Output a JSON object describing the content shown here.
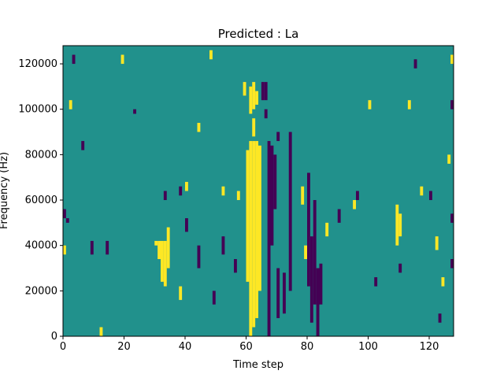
{
  "chart_data": {
    "type": "heatmap",
    "title": "Predicted : La",
    "xlabel": "Time step",
    "ylabel": "Frequency (Hz)",
    "xlim": [
      0,
      128
    ],
    "ylim": [
      0,
      128000
    ],
    "x_ticks": [
      0,
      20,
      40,
      60,
      80,
      100,
      120
    ],
    "y_ticks": [
      0,
      20000,
      40000,
      60000,
      80000,
      100000,
      120000
    ],
    "n_time_steps": 128,
    "n_freq_bins": 64,
    "bin_height_hz": 2000,
    "value_levels": [
      -1,
      0,
      1
    ],
    "colormap": "viridis",
    "colors": {
      "low": "#440154",
      "mid": "#21918c",
      "high": "#fde725"
    },
    "grid": false,
    "legend": "none",
    "cells": [
      {
        "t": 61,
        "f_start": 0,
        "f_end": 86000,
        "value": 1
      },
      {
        "t": 62,
        "f_start": 4000,
        "f_end": 86000,
        "value": 1
      },
      {
        "t": 63,
        "f_start": 8000,
        "f_end": 86000,
        "value": 1
      },
      {
        "t": 64,
        "f_start": 20000,
        "f_end": 84000,
        "value": 1
      },
      {
        "t": 60,
        "f_start": 24000,
        "f_end": 82000,
        "value": 1
      },
      {
        "t": 61,
        "f_start": 98000,
        "f_end": 110000,
        "value": 1
      },
      {
        "t": 62,
        "f_start": 100000,
        "f_end": 112000,
        "value": 1
      },
      {
        "t": 63,
        "f_start": 102000,
        "f_end": 108000,
        "value": 1
      },
      {
        "t": 59,
        "f_start": 106000,
        "f_end": 112000,
        "value": 1
      },
      {
        "t": 62,
        "f_start": 88000,
        "f_end": 96000,
        "value": 1
      },
      {
        "t": 32,
        "f_start": 24000,
        "f_end": 42000,
        "value": 1
      },
      {
        "t": 33,
        "f_start": 22000,
        "f_end": 42000,
        "value": 1
      },
      {
        "t": 34,
        "f_start": 30000,
        "f_end": 48000,
        "value": 1
      },
      {
        "t": 31,
        "f_start": 34000,
        "f_end": 42000,
        "value": 1
      },
      {
        "t": 30,
        "f_start": 40000,
        "f_end": 42000,
        "value": 1
      },
      {
        "t": 67,
        "f_start": 0,
        "f_end": 86000,
        "value": -1
      },
      {
        "t": 68,
        "f_start": 40000,
        "f_end": 84000,
        "value": -1
      },
      {
        "t": 69,
        "f_start": 56000,
        "f_end": 80000,
        "value": -1
      },
      {
        "t": 70,
        "f_start": 8000,
        "f_end": 30000,
        "value": -1
      },
      {
        "t": 72,
        "f_start": 10000,
        "f_end": 28000,
        "value": -1
      },
      {
        "t": 74,
        "f_start": 20000,
        "f_end": 90000,
        "value": -1
      },
      {
        "t": 80,
        "f_start": 22000,
        "f_end": 72000,
        "value": -1
      },
      {
        "t": 81,
        "f_start": 6000,
        "f_end": 44000,
        "value": -1
      },
      {
        "t": 82,
        "f_start": 14000,
        "f_end": 60000,
        "value": -1
      },
      {
        "t": 83,
        "f_start": 0,
        "f_end": 30000,
        "value": -1
      },
      {
        "t": 84,
        "f_start": 14000,
        "f_end": 32000,
        "value": -1
      },
      {
        "t": 65,
        "f_start": 104000,
        "f_end": 112000,
        "value": -1
      },
      {
        "t": 66,
        "f_start": 104000,
        "f_end": 112000,
        "value": -1
      },
      {
        "t": 66,
        "f_start": 96000,
        "f_end": 100000,
        "value": -1
      },
      {
        "t": 70,
        "f_start": 86000,
        "f_end": 90000,
        "value": -1
      },
      {
        "t": 52,
        "f_start": 36000,
        "f_end": 44000,
        "value": -1
      },
      {
        "t": 33,
        "f_start": 60000,
        "f_end": 64000,
        "value": -1
      },
      {
        "t": 38,
        "f_start": 62000,
        "f_end": 66000,
        "value": -1
      },
      {
        "t": 127,
        "f_start": 50000,
        "f_end": 54000,
        "value": -1
      },
      {
        "t": 127,
        "f_start": 30000,
        "f_end": 34000,
        "value": -1
      },
      {
        "t": 127,
        "f_start": 100000,
        "f_end": 104000,
        "value": -1
      },
      {
        "t": 0,
        "f_start": 52000,
        "f_end": 56000,
        "value": -1
      },
      {
        "t": 1,
        "f_start": 50000,
        "f_end": 52000,
        "value": -1
      },
      {
        "t": 3,
        "f_start": 120000,
        "f_end": 124000,
        "value": -1
      },
      {
        "t": 6,
        "f_start": 82000,
        "f_end": 86000,
        "value": -1
      },
      {
        "t": 9,
        "f_start": 36000,
        "f_end": 42000,
        "value": -1
      },
      {
        "t": 14,
        "f_start": 36000,
        "f_end": 42000,
        "value": -1
      },
      {
        "t": 23,
        "f_start": 98000,
        "f_end": 100000,
        "value": -1
      },
      {
        "t": 40,
        "f_start": 46000,
        "f_end": 52000,
        "value": -1
      },
      {
        "t": 44,
        "f_start": 30000,
        "f_end": 40000,
        "value": -1
      },
      {
        "t": 49,
        "f_start": 14000,
        "f_end": 20000,
        "value": -1
      },
      {
        "t": 56,
        "f_start": 28000,
        "f_end": 34000,
        "value": -1
      },
      {
        "t": 90,
        "f_start": 50000,
        "f_end": 56000,
        "value": -1
      },
      {
        "t": 96,
        "f_start": 60000,
        "f_end": 64000,
        "value": -1
      },
      {
        "t": 102,
        "f_start": 22000,
        "f_end": 26000,
        "value": -1
      },
      {
        "t": 110,
        "f_start": 28000,
        "f_end": 32000,
        "value": -1
      },
      {
        "t": 115,
        "f_start": 118000,
        "f_end": 122000,
        "value": -1
      },
      {
        "t": 120,
        "f_start": 60000,
        "f_end": 64000,
        "value": -1
      },
      {
        "t": 123,
        "f_start": 6000,
        "f_end": 10000,
        "value": -1
      },
      {
        "t": 2,
        "f_start": 100000,
        "f_end": 104000,
        "value": 1
      },
      {
        "t": 0,
        "f_start": 36000,
        "f_end": 40000,
        "value": 1
      },
      {
        "t": 12,
        "f_start": 0,
        "f_end": 4000,
        "value": 1
      },
      {
        "t": 19,
        "f_start": 120000,
        "f_end": 124000,
        "value": 1
      },
      {
        "t": 38,
        "f_start": 16000,
        "f_end": 22000,
        "value": 1
      },
      {
        "t": 40,
        "f_start": 64000,
        "f_end": 68000,
        "value": 1
      },
      {
        "t": 44,
        "f_start": 90000,
        "f_end": 94000,
        "value": 1
      },
      {
        "t": 48,
        "f_start": 122000,
        "f_end": 126000,
        "value": 1
      },
      {
        "t": 52,
        "f_start": 62000,
        "f_end": 66000,
        "value": 1
      },
      {
        "t": 57,
        "f_start": 60000,
        "f_end": 64000,
        "value": 1
      },
      {
        "t": 78,
        "f_start": 58000,
        "f_end": 66000,
        "value": 1
      },
      {
        "t": 79,
        "f_start": 34000,
        "f_end": 40000,
        "value": 1
      },
      {
        "t": 86,
        "f_start": 44000,
        "f_end": 50000,
        "value": 1
      },
      {
        "t": 95,
        "f_start": 56000,
        "f_end": 60000,
        "value": 1
      },
      {
        "t": 100,
        "f_start": 100000,
        "f_end": 104000,
        "value": 1
      },
      {
        "t": 109,
        "f_start": 40000,
        "f_end": 58000,
        "value": 1
      },
      {
        "t": 110,
        "f_start": 44000,
        "f_end": 54000,
        "value": 1
      },
      {
        "t": 113,
        "f_start": 100000,
        "f_end": 104000,
        "value": 1
      },
      {
        "t": 117,
        "f_start": 62000,
        "f_end": 66000,
        "value": 1
      },
      {
        "t": 122,
        "f_start": 38000,
        "f_end": 44000,
        "value": 1
      },
      {
        "t": 124,
        "f_start": 22000,
        "f_end": 26000,
        "value": 1
      },
      {
        "t": 126,
        "f_start": 76000,
        "f_end": 80000,
        "value": 1
      },
      {
        "t": 127,
        "f_start": 120000,
        "f_end": 124000,
        "value": 1
      }
    ]
  }
}
